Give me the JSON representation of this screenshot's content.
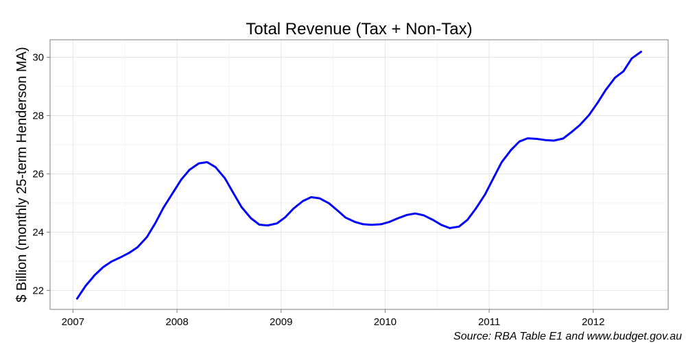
{
  "chart_data": {
    "type": "line",
    "title": "Total Revenue (Tax + Non-Tax)",
    "xlabel": "",
    "ylabel": "$ Billion (monthly 25-term Henderson MA)",
    "caption": "Source: RBA Table E1 and www.budget.gov.au",
    "xlim": [
      2006.78,
      2012.72
    ],
    "ylim": [
      21.35,
      30.6
    ],
    "x_ticks": [
      2007,
      2008,
      2009,
      2010,
      2011,
      2012
    ],
    "y_ticks": [
      22,
      24,
      26,
      28,
      30
    ],
    "grid": true,
    "line_color": "#0000ff",
    "series": [
      {
        "x": [
          2007.04,
          2007.12,
          2007.21,
          2007.29,
          2007.37,
          2007.46,
          2007.54,
          2007.62,
          2007.71,
          2007.79,
          2007.87,
          2007.96,
          2008.04,
          2008.12,
          2008.21,
          2008.29,
          2008.37,
          2008.46,
          2008.54,
          2008.62,
          2008.71,
          2008.79,
          2008.87,
          2008.96,
          2009.04,
          2009.12,
          2009.21,
          2009.29,
          2009.37,
          2009.46,
          2009.54,
          2009.62,
          2009.71,
          2009.79,
          2009.87,
          2009.96,
          2010.04,
          2010.12,
          2010.21,
          2010.29,
          2010.37,
          2010.46,
          2010.54,
          2010.62,
          2010.71,
          2010.79,
          2010.87,
          2010.96,
          2011.04,
          2011.12,
          2011.21,
          2011.29,
          2011.37,
          2011.46,
          2011.54,
          2011.62,
          2011.71,
          2011.79,
          2011.87,
          2011.96,
          2012.04,
          2012.12,
          2012.21,
          2012.29,
          2012.37,
          2012.46
        ],
        "values": [
          21.72,
          22.15,
          22.53,
          22.8,
          22.99,
          23.14,
          23.29,
          23.48,
          23.83,
          24.3,
          24.84,
          25.35,
          25.8,
          26.14,
          26.36,
          26.4,
          26.23,
          25.85,
          25.35,
          24.86,
          24.48,
          24.26,
          24.23,
          24.3,
          24.51,
          24.81,
          25.07,
          25.2,
          25.16,
          24.99,
          24.75,
          24.5,
          24.35,
          24.27,
          24.25,
          24.27,
          24.35,
          24.47,
          24.59,
          24.64,
          24.58,
          24.42,
          24.25,
          24.14,
          24.19,
          24.42,
          24.8,
          25.29,
          25.85,
          26.4,
          26.82,
          27.11,
          27.22,
          27.2,
          27.16,
          27.14,
          27.21,
          27.43,
          27.67,
          28.02,
          28.43,
          28.88,
          29.3,
          29.52,
          29.96,
          30.19
        ]
      }
    ]
  }
}
